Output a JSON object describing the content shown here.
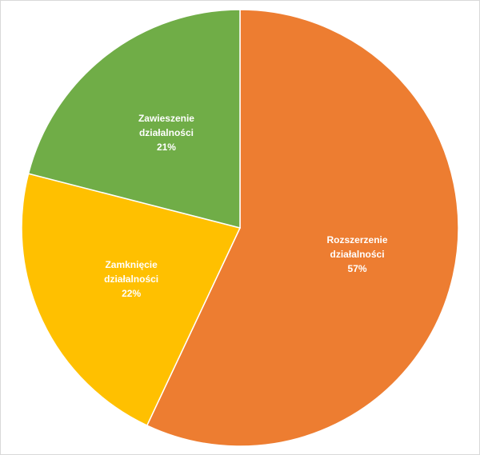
{
  "chart_data": {
    "type": "pie",
    "categories": [
      "Rozszerzenie działalności",
      "Zamknięcie działalności",
      "Zawieszenie działalności"
    ],
    "values": [
      57,
      22,
      21
    ],
    "value_labels": [
      "57%",
      "22%",
      "21%"
    ],
    "colors": [
      "#ed7d31",
      "#ffc000",
      "#70ad47"
    ]
  }
}
